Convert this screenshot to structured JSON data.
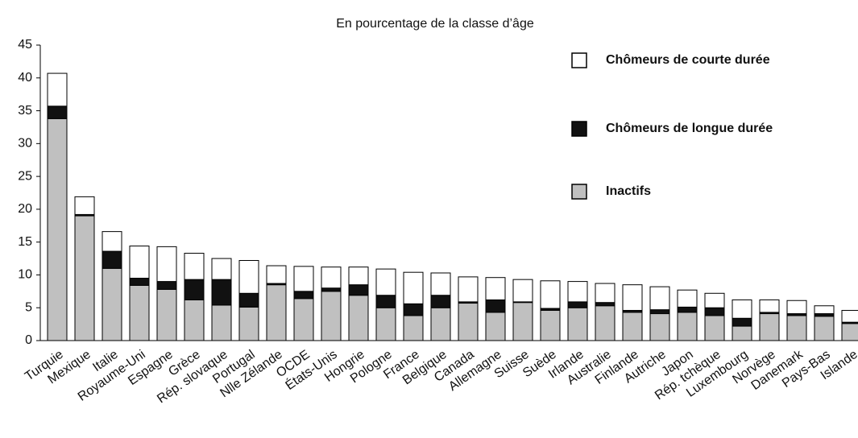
{
  "chart_data": {
    "type": "stacked_bar",
    "title": "En pourcentage de la classe d’âge",
    "categories": [
      "Turquie",
      "Mexique",
      "Italie",
      "Royaume-Uni",
      "Espagne",
      "Grèce",
      "Rép. slovaque",
      "Portugal",
      "Nlle Zélande",
      "OCDE",
      "États-Unis",
      "Hongrie",
      "Pologne",
      "France",
      "Belgique",
      "Canada",
      "Allemagne",
      "Suisse",
      "Suède",
      "Irlande",
      "Australie",
      "Finlande",
      "Autriche",
      "Japon",
      "Rép. tchèque",
      "Luxembourg",
      "Norvège",
      "Danemark",
      "Pays-Bas",
      "Islande"
    ],
    "series": [
      {
        "name": "Inactifs",
        "color": "#c0c0c0",
        "values": [
          33.8,
          19.0,
          11.0,
          8.4,
          7.8,
          6.2,
          5.4,
          5.1,
          8.5,
          6.4,
          7.5,
          6.9,
          5.0,
          3.8,
          5.0,
          5.7,
          4.3,
          5.8,
          4.6,
          5.0,
          5.3,
          4.3,
          4.1,
          4.3,
          3.8,
          2.2,
          4.1,
          3.8,
          3.7,
          2.6
        ]
      },
      {
        "name": "Chômeurs de longue durée",
        "color": "#111111",
        "values": [
          1.9,
          0.2,
          2.6,
          1.1,
          1.2,
          3.1,
          3.9,
          2.1,
          0.2,
          1.1,
          0.5,
          1.6,
          1.9,
          1.8,
          1.9,
          0.2,
          1.9,
          0.1,
          0.3,
          0.9,
          0.5,
          0.3,
          0.6,
          0.8,
          1.2,
          1.2,
          0.2,
          0.3,
          0.4,
          0.2
        ]
      },
      {
        "name": "Chômeurs de courte durée",
        "color": "#ffffff",
        "values": [
          5.0,
          2.7,
          3.0,
          4.9,
          5.3,
          4.0,
          3.2,
          5.0,
          2.7,
          3.8,
          3.2,
          2.7,
          4.0,
          4.8,
          3.4,
          3.8,
          3.4,
          3.4,
          4.2,
          3.1,
          2.9,
          3.9,
          3.5,
          2.6,
          2.2,
          2.8,
          1.9,
          2.0,
          1.2,
          1.8
        ]
      }
    ],
    "ylim": [
      0,
      45
    ],
    "yticks": [
      0,
      5,
      10,
      15,
      20,
      25,
      30,
      35,
      40,
      45
    ],
    "grid": false
  }
}
